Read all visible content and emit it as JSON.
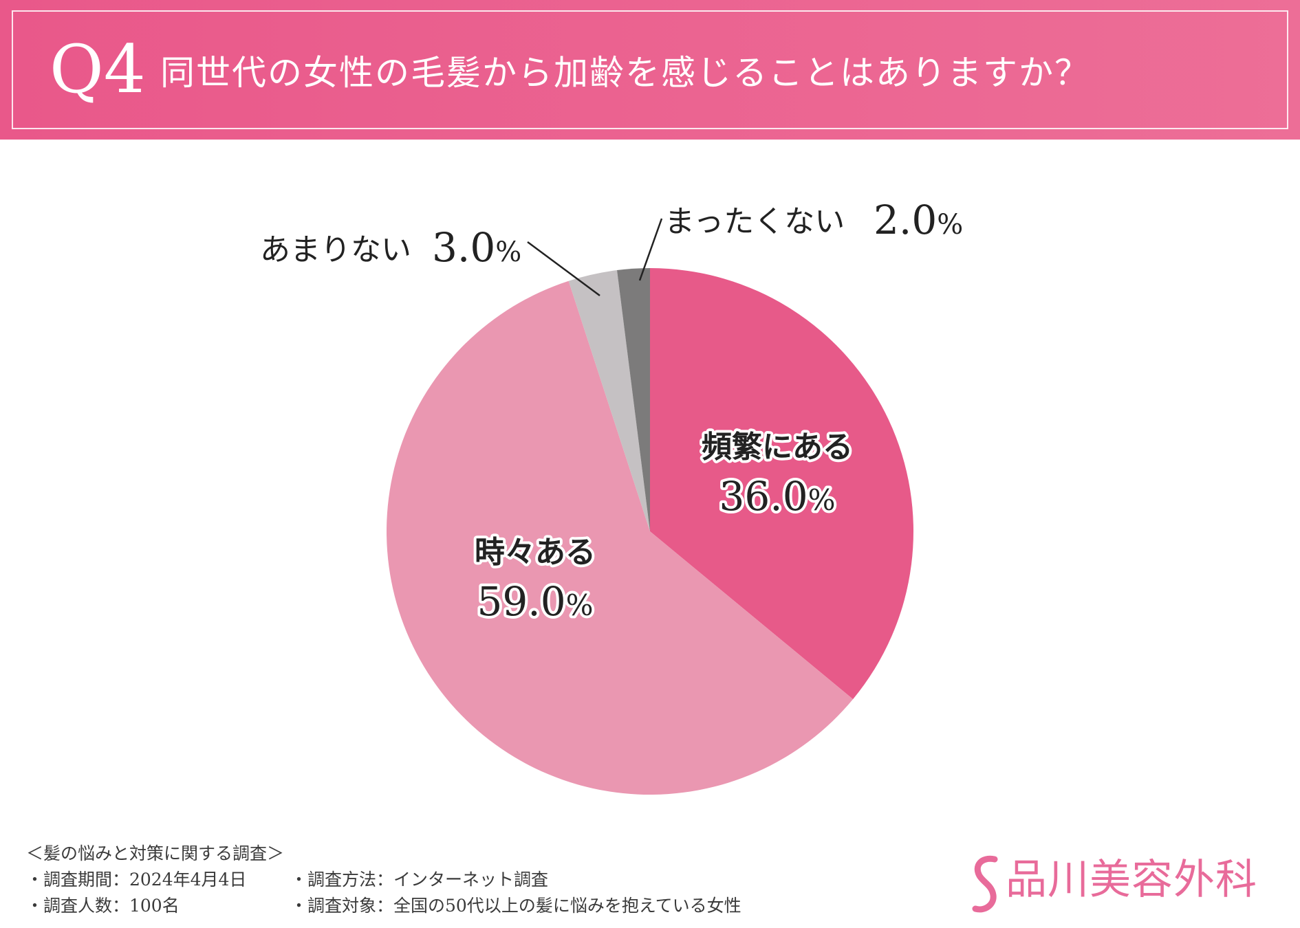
{
  "header": {
    "q_number": "Q4",
    "question": "同世代の女性の毛髪から加齢を感じることはありますか？"
  },
  "colors": {
    "header_bg": "#ea5f8e",
    "slice_frequently": "#e75a89",
    "slice_sometimes": "#ea97b1",
    "slice_rarely": "#c5c1c3",
    "slice_never": "#7c7b7b",
    "logo": "#e86b9a"
  },
  "chart_data": {
    "type": "pie",
    "title": "同世代の女性の毛髪から加齢を感じることはありますか？",
    "unit": "%",
    "slices": [
      {
        "label": "頻繁にある",
        "value": 36.0,
        "value_text": "36.0",
        "color": "#e75a89"
      },
      {
        "label": "時々ある",
        "value": 59.0,
        "value_text": "59.0",
        "color": "#ea97b1"
      },
      {
        "label": "あまりない",
        "value": 3.0,
        "value_text": "3.0",
        "color": "#c5c1c3"
      },
      {
        "label": "まったくない",
        "value": 2.0,
        "value_text": "2.0",
        "color": "#7c7b7b"
      }
    ],
    "start_angle": "12 o'clock",
    "direction": "clockwise"
  },
  "survey": {
    "title": "＜髪の悩みと対策に関する調査＞",
    "period": "・調査期間：2024年4月4日",
    "method": "・調査方法：インターネット調査",
    "respondents": "・調査人数：100名",
    "target": "・調査対象：全国の50代以上の髪に悩みを抱えている女性"
  },
  "logo": {
    "text": "品川美容外科",
    "icon": "s-swirl-logo-icon"
  }
}
